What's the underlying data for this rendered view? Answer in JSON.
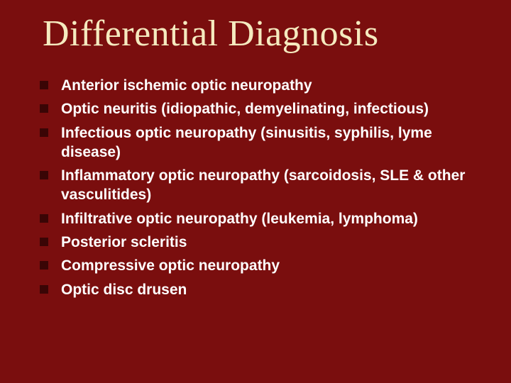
{
  "background_color": "#7a0e0e",
  "title": {
    "text": "Differential Diagnosis",
    "color": "#f5eabf",
    "fontsize": 52,
    "font_family": "Georgia"
  },
  "bullet": {
    "color": "#3a0505",
    "size": 12,
    "shape": "square"
  },
  "body_text": {
    "color": "#ffffff",
    "fontsize": 21,
    "font_family": "Trebuchet MS",
    "weight": "bold"
  },
  "items": [
    "Anterior ischemic optic neuropathy",
    "Optic neuritis (idiopathic, demyelinating, infectious)",
    "Infectious optic neuropathy (sinusitis, syphilis, lyme disease)",
    "Inflammatory optic neuropathy (sarcoidosis, SLE & other vasculitides)",
    "Infiltrative optic neuropathy (leukemia, lymphoma)",
    "Posterior scleritis",
    "Compressive optic neuropathy",
    "Optic disc drusen"
  ]
}
